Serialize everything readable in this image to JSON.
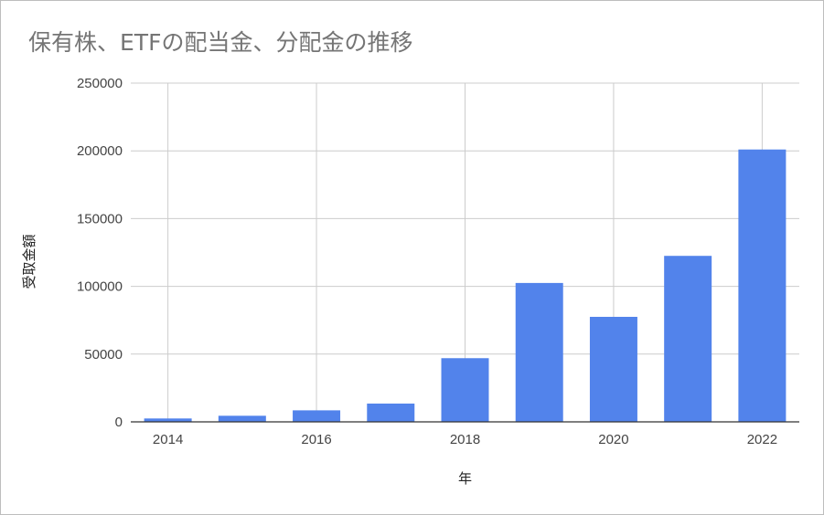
{
  "chart_data": {
    "type": "bar",
    "title": "保有株、ETFの配当金、分配金の推移",
    "xlabel": "年",
    "ylabel": "受取金額",
    "categories": [
      "2014",
      "2015",
      "2016",
      "2017",
      "2018",
      "2019",
      "2020",
      "2021",
      "2022"
    ],
    "x_tick_labels": [
      "2014",
      "2016",
      "2018",
      "2020",
      "2022"
    ],
    "y_tick_labels": [
      "0",
      "50000",
      "100000",
      "150000",
      "200000",
      "250000"
    ],
    "values": [
      2500,
      4500,
      8500,
      13500,
      47000,
      102500,
      77500,
      122500,
      201000
    ],
    "ylim": [
      0,
      250000
    ],
    "grid": true,
    "legend": "none",
    "bar_color": "#5283eb"
  }
}
